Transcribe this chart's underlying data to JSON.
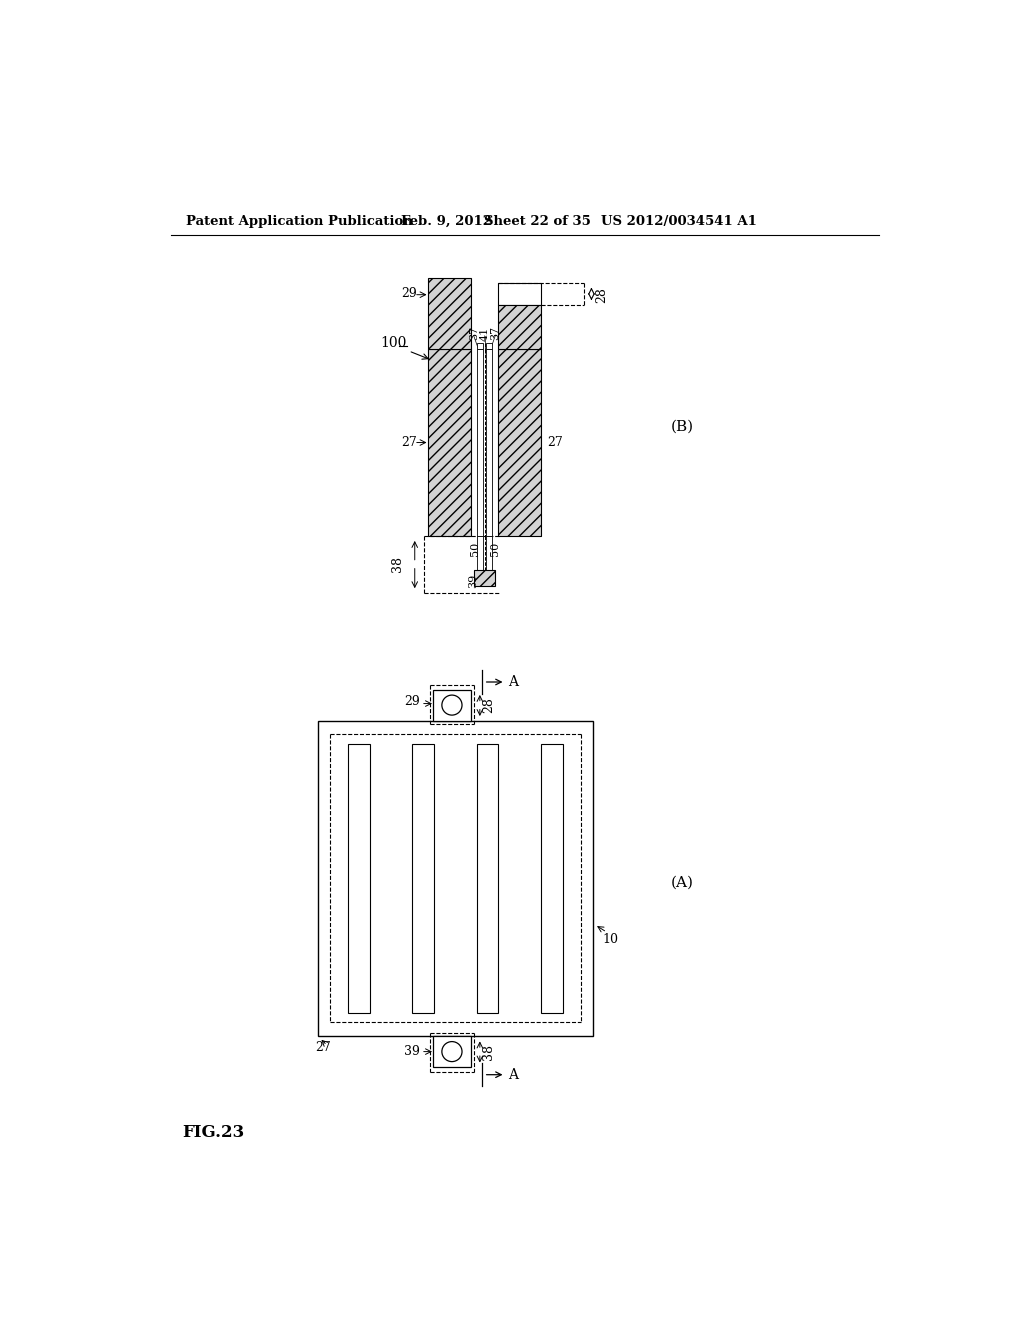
{
  "bg_color": "#ffffff",
  "header_text": "Patent Application Publication",
  "header_date": "Feb. 9, 2012",
  "header_sheet": "Sheet 22 of 35",
  "header_patent": "US 2012/0034541 A1",
  "fig_label": "FIG.23",
  "diagram_B_label": "(B)",
  "diagram_A_label": "(A)",
  "label_100": "100",
  "label_29_B": "29",
  "label_28_B": "28",
  "label_37a": "37",
  "label_41": "41",
  "label_37b": "37",
  "label_27a": "27",
  "label_27b": "27",
  "label_38_B": "38",
  "label_50a": "50",
  "label_39_B": "39",
  "label_50b": "50",
  "label_A_top": "A",
  "label_29_A": "29",
  "label_28_A": "28",
  "label_27_A": "27",
  "label_10": "10",
  "label_39_A": "39",
  "label_38_A": "38",
  "label_A_bot": "A"
}
